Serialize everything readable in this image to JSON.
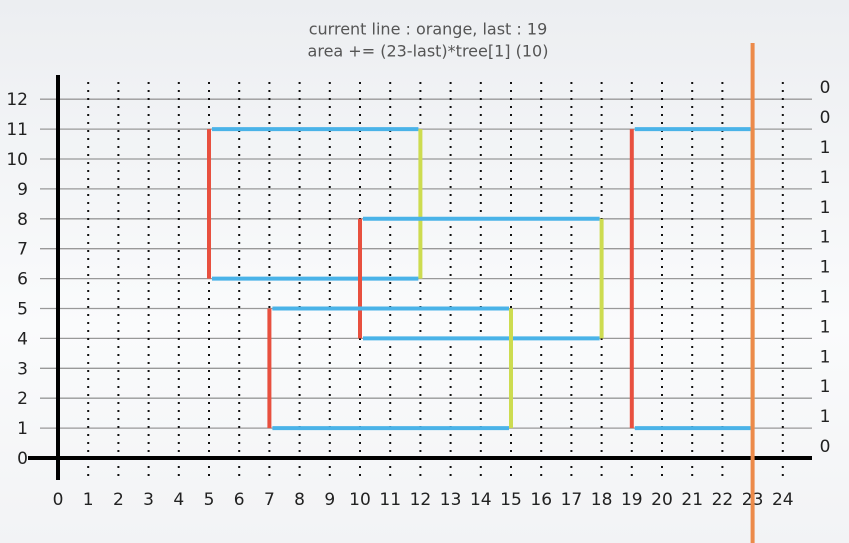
{
  "title_lines": [
    "current line : orange, last : 19",
    "area += (23-last)*tree[1] (10)"
  ],
  "xticks": [
    0,
    1,
    2,
    3,
    4,
    5,
    6,
    7,
    8,
    9,
    10,
    11,
    12,
    13,
    14,
    15,
    16,
    17,
    18,
    19,
    20,
    21,
    22,
    23,
    24
  ],
  "yticks": [
    0,
    1,
    2,
    3,
    4,
    5,
    6,
    7,
    8,
    9,
    10,
    11,
    12
  ],
  "rects": [
    {
      "x1": 5,
      "y1": 6,
      "x2": 12,
      "y2": 11
    },
    {
      "x1": 10,
      "y1": 4,
      "x2": 18,
      "y2": 8
    },
    {
      "x1": 7,
      "y1": 1,
      "x2": 15,
      "y2": 5
    },
    {
      "x1": 19,
      "y1": 1,
      "x2": 23,
      "y2": 11
    }
  ],
  "sweep_x": 23,
  "tree": [
    0,
    0,
    1,
    1,
    1,
    1,
    1,
    1,
    1,
    1,
    1,
    1,
    0
  ]
}
